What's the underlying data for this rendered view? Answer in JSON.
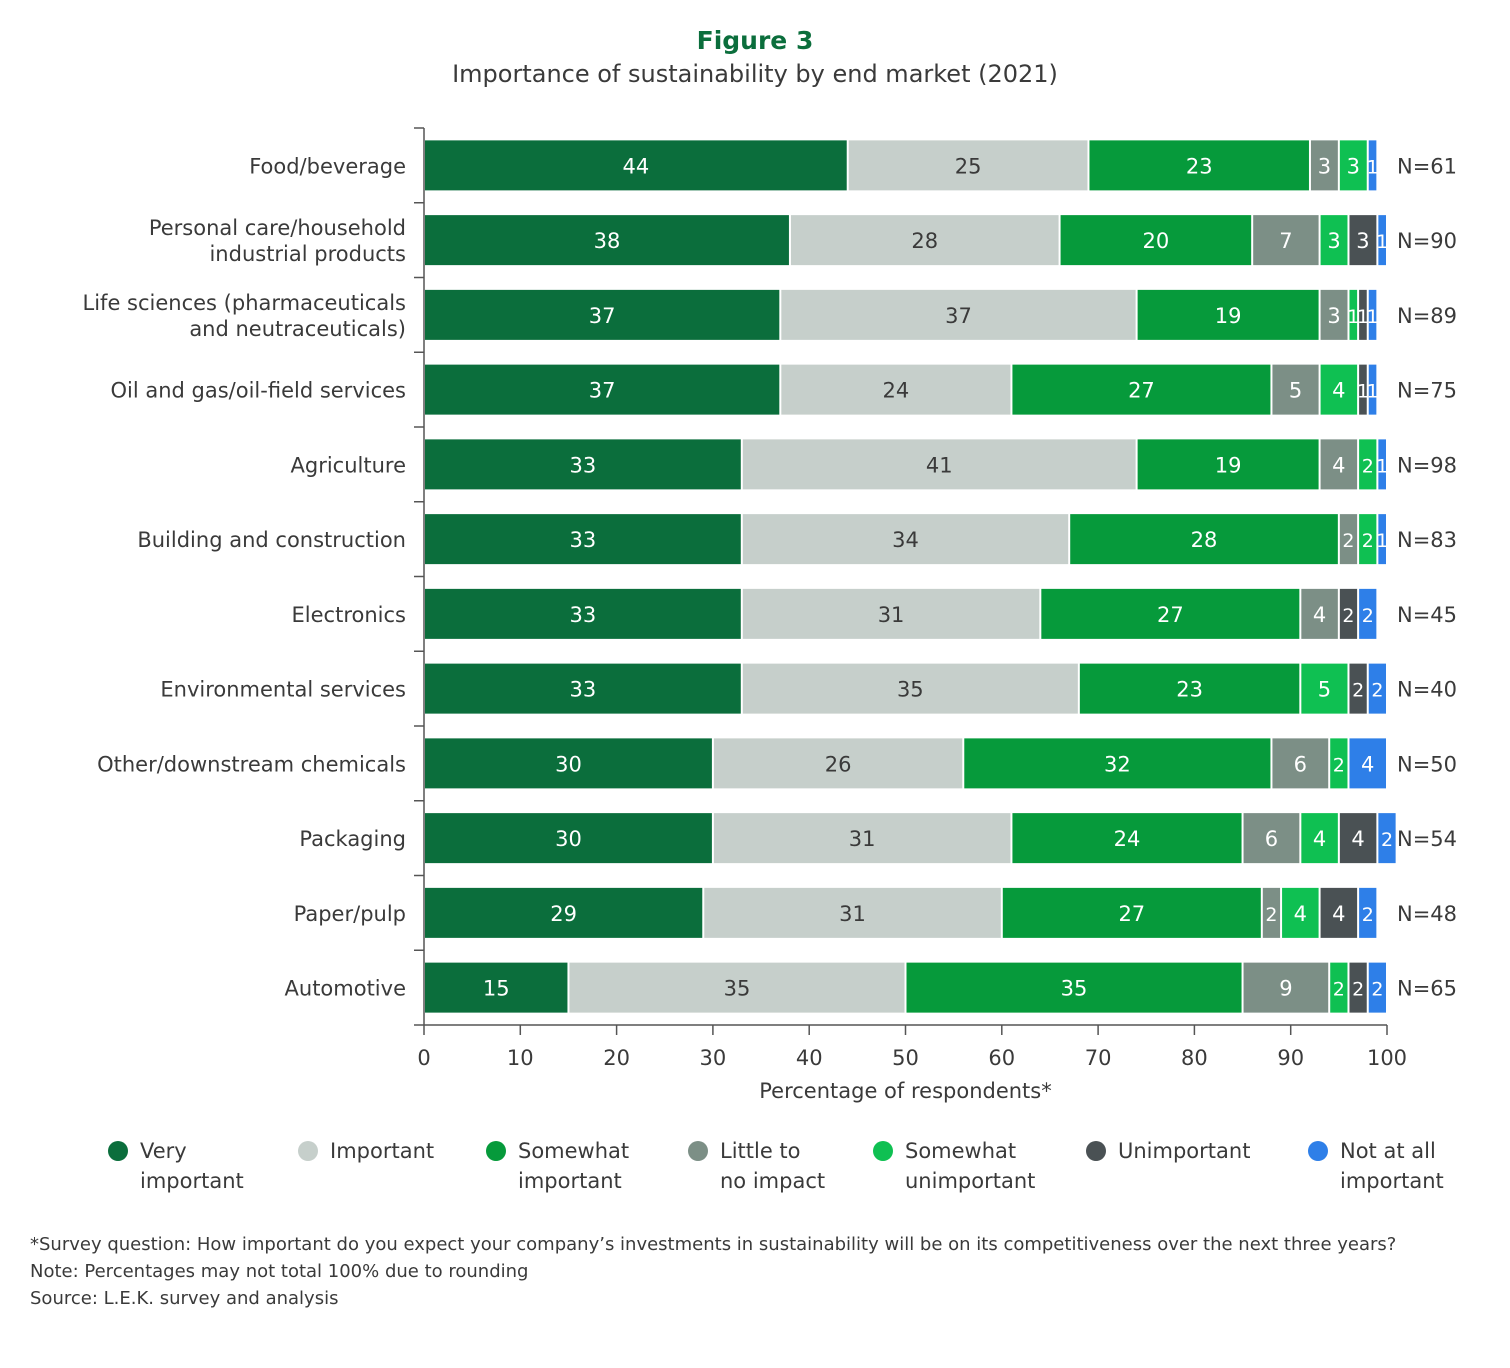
{
  "figure_label": "Figure 3",
  "chart_data": {
    "type": "bar",
    "orientation": "horizontal",
    "stacked": true,
    "title": "Importance of sustainability by end market (2021)",
    "xlabel": "Percentage of respondents*",
    "ylabel": "",
    "xlim": [
      0,
      100
    ],
    "xticks": [
      0,
      10,
      20,
      30,
      40,
      50,
      60,
      70,
      80,
      90,
      100
    ],
    "categories": [
      "Food/beverage",
      "Personal care/household\nindustrial products",
      "Life sciences (pharmaceuticals\nand neutraceuticals)",
      "Oil and gas/oil-field services",
      "Agriculture",
      "Building and construction",
      "Electronics",
      "Environmental services",
      "Other/downstream chemicals",
      "Packaging",
      "Paper/pulp",
      "Automotive"
    ],
    "sample_sizes": [
      "N=61",
      "N=90",
      "N=89",
      "N=75",
      "N=98",
      "N=83",
      "N=45",
      "N=40",
      "N=50",
      "N=54",
      "N=48",
      "N=65"
    ],
    "series": [
      {
        "name": "Very important",
        "color": "#0b6e3c",
        "values": [
          44,
          38,
          37,
          37,
          33,
          33,
          33,
          33,
          30,
          30,
          29,
          15
        ]
      },
      {
        "name": "Important",
        "color": "#c6cfcb",
        "values": [
          25,
          28,
          37,
          24,
          41,
          34,
          31,
          35,
          26,
          31,
          31,
          35
        ]
      },
      {
        "name": "Somewhat important",
        "color": "#069a3b",
        "values": [
          23,
          20,
          19,
          27,
          19,
          28,
          27,
          23,
          32,
          24,
          27,
          35
        ]
      },
      {
        "name": "Little to no impact",
        "color": "#7c8f86",
        "values": [
          3,
          7,
          3,
          5,
          4,
          2,
          4,
          0,
          6,
          6,
          2,
          9
        ]
      },
      {
        "name": "Somewhat unimportant",
        "color": "#0fc052",
        "values": [
          3,
          3,
          1,
          4,
          2,
          2,
          0,
          5,
          2,
          4,
          4,
          2
        ]
      },
      {
        "name": "Unimportant",
        "color": "#4a5154",
        "values": [
          0,
          3,
          1,
          1,
          0,
          0,
          2,
          2,
          0,
          4,
          4,
          2
        ]
      },
      {
        "name": "Not at all important",
        "color": "#2e7fe8",
        "values": [
          1,
          1,
          1,
          1,
          1,
          1,
          2,
          2,
          4,
          2,
          2,
          2
        ]
      }
    ],
    "legend": {
      "position": "bottom",
      "labels": [
        "Very\nimportant",
        "Important",
        "Somewhat\nimportant",
        "Little to\nno impact",
        "Somewhat\nunimportant",
        "Unimportant",
        "Not at all\nimportant"
      ]
    },
    "grid": false
  },
  "footnotes": {
    "survey_question": "*Survey question: How important do you expect your company’s investments in sustainability will be on its competitiveness over the next three years?",
    "note": "Note: Percentages may not total 100% due to rounding",
    "source": "Source: L.E.K. survey and analysis"
  }
}
